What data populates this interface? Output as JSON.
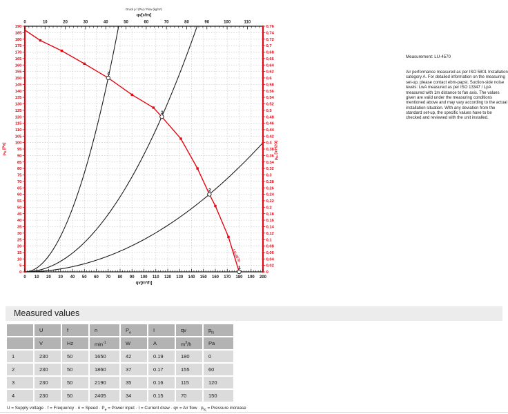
{
  "chart_data": {
    "type": "line",
    "header_line": "Druck p f (Pa) / Flow (kg/m³)",
    "top_axis": {
      "label": "qv[cfm]",
      "max": 110,
      "major_step": 10,
      "minor_step": 2,
      "cfm_to_m3h": 1.699
    },
    "bottom_axis": {
      "label": "qv[m³/h]",
      "min": 0,
      "max": 200,
      "major_step": 10,
      "minor_step": 2
    },
    "left_axis": {
      "label": "p_{fs} [Pa]",
      "min": 0,
      "max": 190,
      "step": 5
    },
    "right_axis": {
      "label": "p_{fs} [inH2O]",
      "min": 0,
      "max": 0.76,
      "step": 0.02
    },
    "colors": {
      "accent": "#e30613",
      "axis": "#1a1a1a",
      "grid": "#c6c6c6"
    },
    "fan_curve": {
      "name": "LU-4570",
      "points": [
        [
          0,
          187
        ],
        [
          13,
          179
        ],
        [
          31,
          171
        ],
        [
          50,
          161
        ],
        [
          70,
          150
        ],
        [
          90,
          137
        ],
        [
          108,
          127
        ],
        [
          115,
          120
        ],
        [
          131,
          103
        ],
        [
          145,
          80
        ],
        [
          155,
          60
        ],
        [
          160,
          51
        ],
        [
          171,
          27
        ],
        [
          180,
          0
        ]
      ],
      "marker_points": [
        [
          13,
          179
        ],
        [
          31,
          171
        ],
        [
          50,
          161
        ],
        [
          90,
          137
        ],
        [
          108,
          127
        ],
        [
          131,
          103
        ],
        [
          145,
          80
        ],
        [
          160,
          51
        ],
        [
          171,
          27
        ]
      ]
    },
    "system_curves": [
      {
        "through_q": 70,
        "through_p": 150
      },
      {
        "through_q": 115,
        "through_p": 120
      },
      {
        "through_q": 155,
        "through_p": 60
      }
    ],
    "operating_points": [
      {
        "label": "4",
        "q": 70,
        "p": 150
      },
      {
        "label": "3",
        "q": 115,
        "p": 120
      },
      {
        "label": "2",
        "q": 155,
        "p": 60
      },
      {
        "label": "1",
        "q": 180,
        "p": 0
      }
    ],
    "curve_end_label": "LU-4570"
  },
  "right_panel": {
    "title": "Measurement: LU-4570",
    "body": "Air performance measured as per ISO 5801 Installation category A. For detailed information on the measuring set-up, please contact ebm-papst. Suction-side noise levels: LwA measured as per ISO 13347 / LpA measured with 1m distance to fan axis. The values given are valid under the measuring conditions mentioned above and may vary according to the actual installation situation. With any deviation from the standard set-up, the specific values have to be checked and reviewed with the unit installed."
  },
  "measured_values": {
    "section_title": "Measured values",
    "col_headers": [
      "",
      "U",
      "f",
      "n",
      "P_{e}",
      "I",
      "qv",
      "p_{fs}"
    ],
    "unit_headers": [
      "",
      "V",
      "Hz",
      "min^{-1}",
      "W",
      "A",
      "m^{3}/h",
      "Pa"
    ],
    "rows": [
      [
        "1",
        "230",
        "50",
        "1650",
        "42",
        "0.19",
        "180",
        "0"
      ],
      [
        "2",
        "230",
        "50",
        "1860",
        "37",
        "0.17",
        "155",
        "60"
      ],
      [
        "3",
        "230",
        "50",
        "2190",
        "35",
        "0.16",
        "115",
        "120"
      ],
      [
        "4",
        "230",
        "50",
        "2405",
        "34",
        "0.15",
        "70",
        "150"
      ]
    ],
    "footnote": "U = Supply voltage · f = Frequency · n = Speed · P_{e} = Power input · I = Current draw · qv = Air flow · p_{fs} = Pressure increase"
  }
}
